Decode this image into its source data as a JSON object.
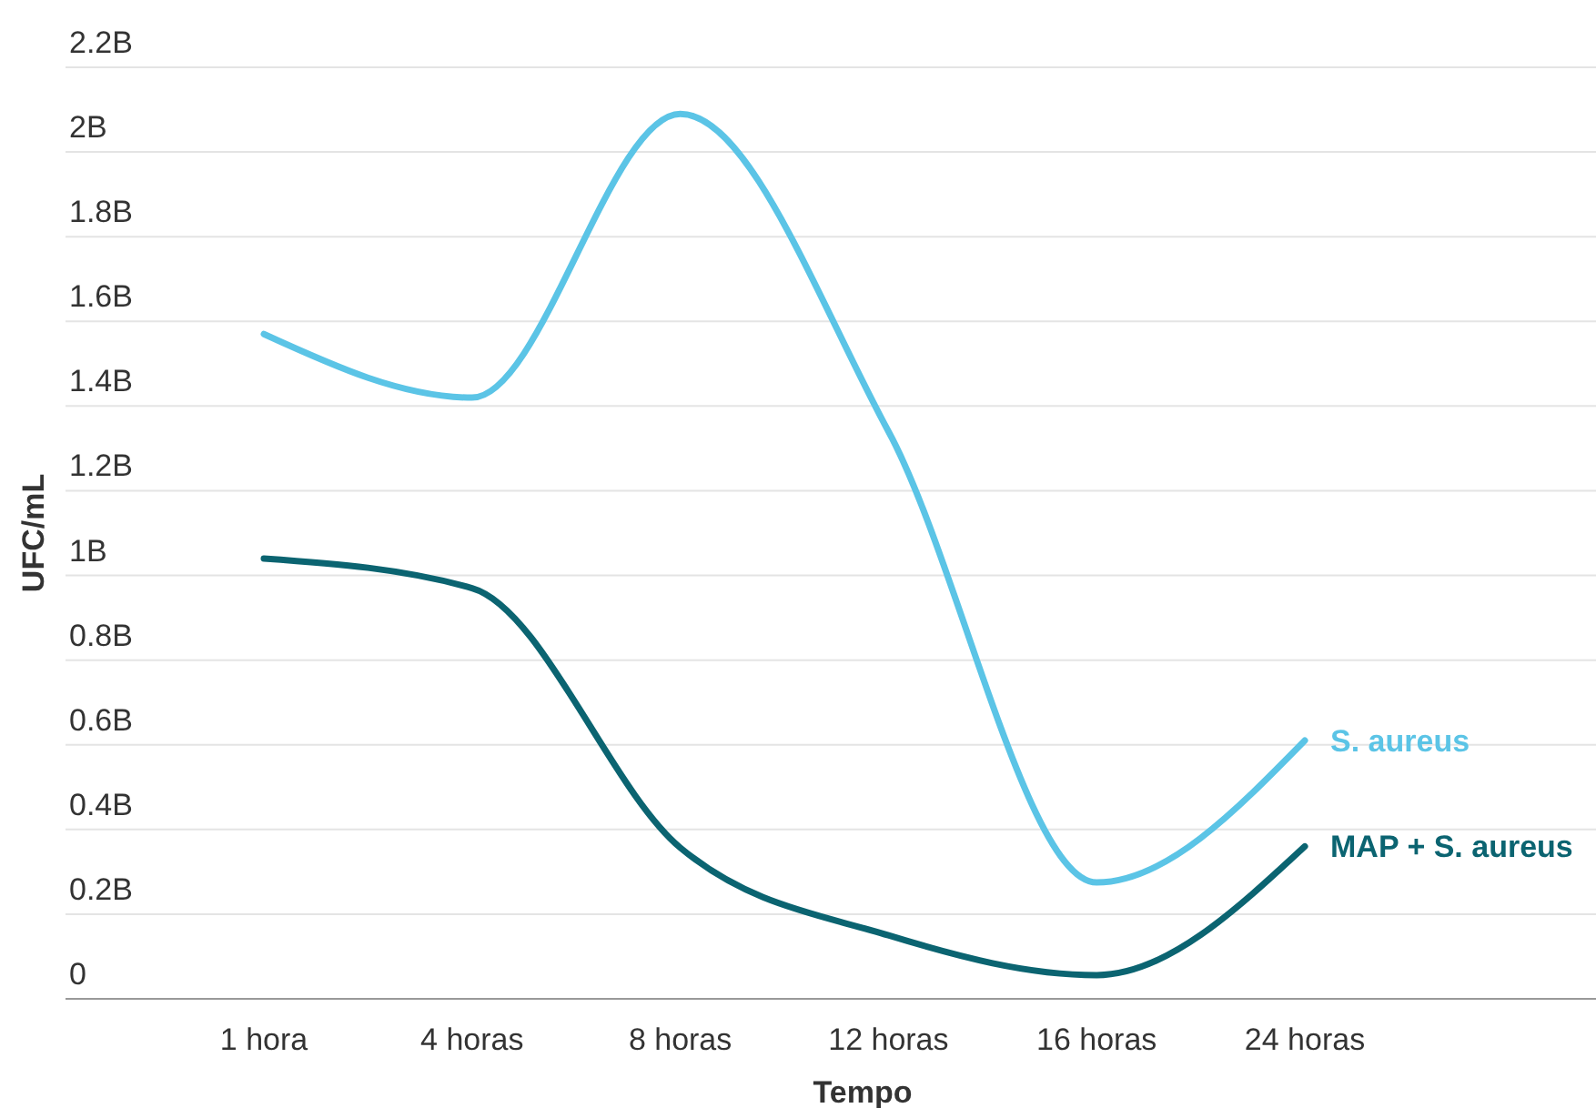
{
  "chart_data": {
    "type": "line",
    "xlabel": "Tempo",
    "ylabel": "UFC/mL",
    "categories": [
      "1 hora",
      "4 horas",
      "8 horas",
      "12 horas",
      "16 horas",
      "24 horas"
    ],
    "series": [
      {
        "name": "S. aureus",
        "color": "#5bc4e6",
        "values": [
          1.57,
          1.42,
          2.09,
          1.34,
          0.275,
          0.61
        ]
      },
      {
        "name": "MAP + S. aureus",
        "color": "#0b6471",
        "values": [
          1.04,
          0.97,
          0.357,
          0.15,
          0.056,
          0.36
        ]
      }
    ],
    "ylim": [
      0,
      2.2
    ],
    "yticks": [
      {
        "value": 0,
        "label": "0"
      },
      {
        "value": 0.2,
        "label": "0.2B"
      },
      {
        "value": 0.4,
        "label": "0.4B"
      },
      {
        "value": 0.6,
        "label": "0.6B"
      },
      {
        "value": 0.8,
        "label": "0.8B"
      },
      {
        "value": 1,
        "label": "1B"
      },
      {
        "value": 1.2,
        "label": "1.2B"
      },
      {
        "value": 1.4,
        "label": "1.4B"
      },
      {
        "value": 1.6,
        "label": "1.6B"
      },
      {
        "value": 1.8,
        "label": "1.8B"
      },
      {
        "value": 2,
        "label": "2B"
      },
      {
        "value": 2.2,
        "label": "2.2B"
      }
    ],
    "grid": "y",
    "marker": "none",
    "line_style": "solid"
  }
}
